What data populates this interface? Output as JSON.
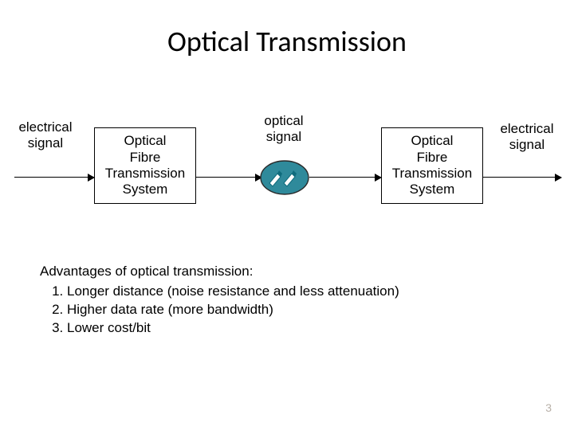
{
  "title": "Optical Transmission",
  "diagram": {
    "labels": {
      "elec_in": "electrical\nsignal",
      "elec_out": "electrical\nsignal",
      "optical": "optical\nsignal"
    },
    "box_left": "Optical\nFibre\nTransmission\nSystem",
    "box_right": "Optical\nFibre\nTransmission\nSystem",
    "box_border": "#000000",
    "arrow_color": "#000000",
    "fiber_icon": {
      "teal": "#2f8a9b",
      "dark_teal": "#0f6b7c",
      "white": "#ffffff",
      "border": "#2b2b2b"
    }
  },
  "advantages": {
    "heading": "Advantages of optical transmission:",
    "items": [
      "Longer distance (noise resistance and less attenuation)",
      "Higher data rate (more bandwidth)",
      "Lower cost/bit"
    ]
  },
  "page_number": "3",
  "colors": {
    "text": "#000000",
    "bg": "#ffffff",
    "pagenum": "#b8b0a8"
  },
  "typography": {
    "title_fontsize": 36,
    "body_fontsize": 17,
    "pagenum_fontsize": 14
  }
}
